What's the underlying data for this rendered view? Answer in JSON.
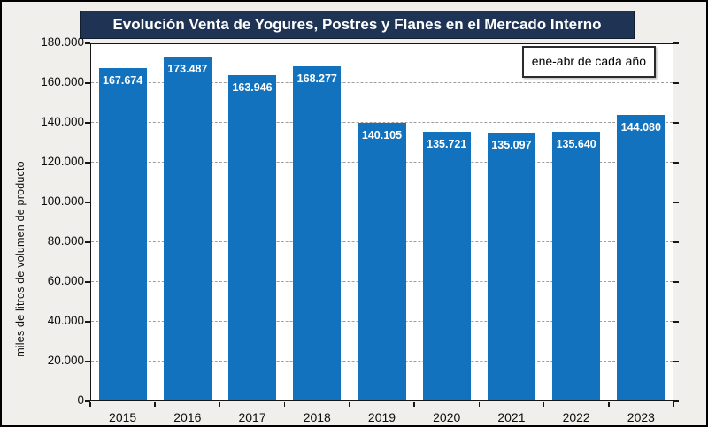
{
  "chart_data": {
    "type": "bar",
    "title": "Evolución Venta de Yogures, Postres y Flanes en el Mercado Interno",
    "annotation": "ene-abr de cada año",
    "ylabel": "miles de litros de volumen de producto",
    "xlabel": "",
    "categories": [
      "2015",
      "2016",
      "2017",
      "2018",
      "2019",
      "2020",
      "2021",
      "2022",
      "2023"
    ],
    "values": [
      167674,
      173487,
      163946,
      168277,
      140105,
      135721,
      135097,
      135640,
      144080
    ],
    "value_labels": [
      "167.674",
      "173.487",
      "163.946",
      "168.277",
      "140.105",
      "135.721",
      "135.097",
      "135.640",
      "144.080"
    ],
    "ylim": [
      0,
      180000
    ],
    "ytick_step": 20000,
    "ytick_labels": [
      "0",
      "20.000",
      "40.000",
      "60.000",
      "80.000",
      "100.000",
      "120.000",
      "140.000",
      "160.000",
      "180.000"
    ],
    "grid": "horizontal-dashed",
    "legend_position": "none",
    "colors": {
      "bar": "#1272bd",
      "title_bg": "#1f3455",
      "title_text": "#ffffff",
      "plot_bg": "#ffffff",
      "page_bg": "#f0efec",
      "gridline": "#9e9e9e",
      "axis": "#161616",
      "value_label": "#ffffff"
    }
  }
}
